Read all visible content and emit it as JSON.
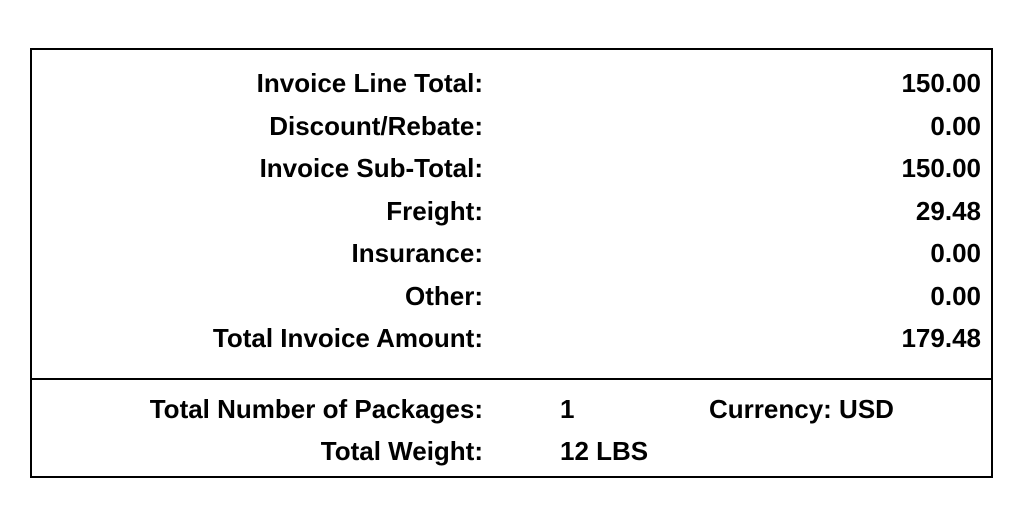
{
  "totals": [
    {
      "label": "Invoice Line Total:",
      "value": "150.00"
    },
    {
      "label": "Discount/Rebate:",
      "value": "0.00"
    },
    {
      "label": "Invoice Sub-Total:",
      "value": "150.00"
    },
    {
      "label": "Freight:",
      "value": "29.48"
    },
    {
      "label": "Insurance:",
      "value": "0.00"
    },
    {
      "label": "Other:",
      "value": "0.00"
    },
    {
      "label": "Total Invoice Amount:",
      "value": "179.48"
    }
  ],
  "packages": {
    "label": "Total Number of Packages:",
    "value": "1"
  },
  "weight": {
    "label": "Total Weight:",
    "value": "12 LBS"
  },
  "currency": "Currency: USD"
}
